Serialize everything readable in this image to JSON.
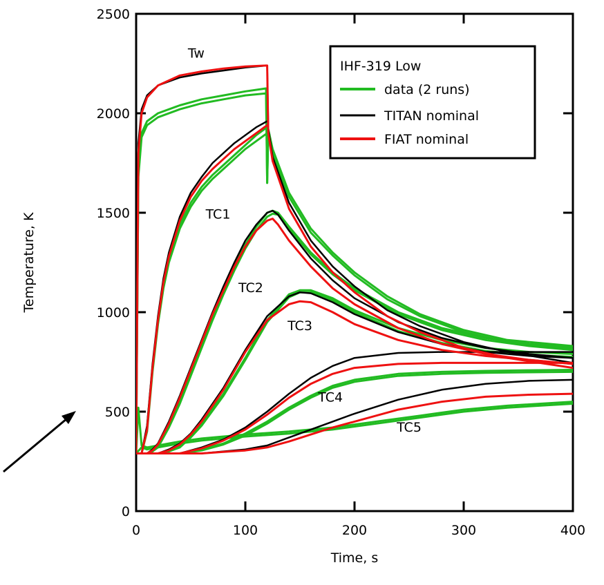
{
  "chart_data": {
    "type": "line",
    "xlabel": "Time, s",
    "ylabel": "Temperature, K",
    "xlim": [
      0,
      400
    ],
    "ylim": [
      0,
      2500
    ],
    "x_ticks": [
      0,
      100,
      200,
      300,
      400
    ],
    "y_ticks": [
      0,
      500,
      1000,
      1500,
      2000,
      2500
    ],
    "grid": false,
    "legend": {
      "placement": "top-right",
      "title": "IHF-319 Low",
      "entries": [
        {
          "label": "data (2 runs)",
          "color": "#22bb22"
        },
        {
          "label": "TITAN nominal",
          "color": "#000000"
        },
        {
          "label": "FIAT nominal",
          "color": "#ee1111"
        }
      ]
    },
    "curve_labels": [
      {
        "text": "Tw",
        "x": 55,
        "y": 2280
      },
      {
        "text": "TC1",
        "x": 75,
        "y": 1470
      },
      {
        "text": "TC2",
        "x": 105,
        "y": 1100
      },
      {
        "text": "TC3",
        "x": 150,
        "y": 910
      },
      {
        "text": "TC4",
        "x": 178,
        "y": 550
      },
      {
        "text": "TC5",
        "x": 250,
        "y": 400
      }
    ],
    "series": [
      {
        "name": "Tw data run 1",
        "kind": "data",
        "color": "#22bb22",
        "x": [
          0,
          2,
          5,
          10,
          20,
          40,
          60,
          80,
          100,
          119,
          120,
          121,
          125,
          140,
          160,
          180,
          200,
          230,
          260,
          300,
          340,
          400
        ],
        "y": [
          300,
          1700,
          1900,
          1960,
          2000,
          2040,
          2070,
          2090,
          2110,
          2125,
          1650,
          1920,
          1820,
          1600,
          1420,
          1300,
          1200,
          1080,
          990,
          910,
          860,
          830
        ]
      },
      {
        "name": "Tw data run 2",
        "kind": "data",
        "color": "#22bb22",
        "x": [
          0,
          2,
          5,
          10,
          20,
          40,
          60,
          80,
          100,
          119,
          120,
          121,
          125,
          140,
          160,
          180,
          200,
          230,
          260,
          300,
          340,
          400
        ],
        "y": [
          300,
          1680,
          1880,
          1940,
          1980,
          2020,
          2050,
          2070,
          2090,
          2100,
          1650,
          1900,
          1800,
          1580,
          1400,
          1285,
          1185,
          1065,
          980,
          900,
          850,
          815
        ]
      },
      {
        "name": "Tw TITAN",
        "kind": "titan",
        "color": "#000000",
        "x": [
          0,
          2,
          5,
          10,
          20,
          40,
          60,
          80,
          100,
          119,
          120,
          121,
          125,
          140,
          160,
          180,
          200,
          230,
          260,
          300,
          340,
          400
        ],
        "y": [
          300,
          1850,
          2020,
          2090,
          2140,
          2180,
          2200,
          2215,
          2230,
          2240,
          2240,
          1920,
          1780,
          1550,
          1360,
          1230,
          1130,
          1010,
          930,
          850,
          800,
          745
        ]
      },
      {
        "name": "Tw FIAT",
        "kind": "fiat",
        "color": "#ee1111",
        "x": [
          0,
          2,
          5,
          10,
          20,
          40,
          60,
          80,
          100,
          119,
          120,
          121,
          125,
          140,
          160,
          180,
          200,
          230,
          260,
          300,
          340,
          400
        ],
        "y": [
          300,
          1800,
          2000,
          2080,
          2140,
          2190,
          2210,
          2225,
          2235,
          2240,
          2240,
          1900,
          1760,
          1520,
          1330,
          1200,
          1100,
          980,
          900,
          820,
          770,
          720
        ]
      },
      {
        "name": "TC1 data run 1",
        "kind": "data",
        "color": "#22bb22",
        "x": [
          0,
          5,
          10,
          15,
          20,
          25,
          30,
          40,
          50,
          60,
          70,
          80,
          90,
          100,
          110,
          120
        ],
        "y": [
          290,
          290,
          420,
          720,
          960,
          1140,
          1270,
          1440,
          1550,
          1630,
          1690,
          1740,
          1790,
          1840,
          1890,
          1930
        ]
      },
      {
        "name": "TC1 data run 2",
        "kind": "data",
        "color": "#22bb22",
        "x": [
          0,
          5,
          10,
          15,
          20,
          25,
          30,
          40,
          50,
          60,
          70,
          80,
          90,
          100,
          110,
          120
        ],
        "y": [
          290,
          290,
          400,
          700,
          940,
          1120,
          1250,
          1420,
          1530,
          1610,
          1670,
          1720,
          1770,
          1820,
          1860,
          1900
        ]
      },
      {
        "name": "TC1 TITAN",
        "kind": "titan",
        "color": "#000000",
        "x": [
          0,
          5,
          10,
          15,
          20,
          25,
          30,
          40,
          50,
          60,
          70,
          80,
          90,
          100,
          110,
          120
        ],
        "y": [
          290,
          290,
          430,
          740,
          980,
          1170,
          1300,
          1480,
          1600,
          1680,
          1750,
          1800,
          1850,
          1890,
          1930,
          1960
        ]
      },
      {
        "name": "TC1 FIAT",
        "kind": "fiat",
        "color": "#ee1111",
        "x": [
          0,
          5,
          10,
          15,
          20,
          25,
          30,
          40,
          50,
          60,
          70,
          80,
          90,
          100,
          110,
          120
        ],
        "y": [
          290,
          290,
          410,
          720,
          960,
          1150,
          1280,
          1460,
          1580,
          1660,
          1720,
          1770,
          1820,
          1860,
          1900,
          1940
        ]
      },
      {
        "name": "TC2 data run 1",
        "kind": "data",
        "color": "#22bb22",
        "x": [
          0,
          10,
          15,
          20,
          30,
          40,
          50,
          60,
          70,
          80,
          90,
          100,
          110,
          120,
          125,
          130,
          140,
          160,
          180,
          200,
          240,
          280,
          320,
          360,
          400
        ],
        "y": [
          290,
          290,
          300,
          330,
          430,
          560,
          700,
          840,
          980,
          1110,
          1230,
          1340,
          1430,
          1500,
          1510,
          1500,
          1430,
          1300,
          1200,
          1120,
          1000,
          920,
          870,
          840,
          825
        ]
      },
      {
        "name": "TC2 data run 2",
        "kind": "data",
        "color": "#22bb22",
        "x": [
          0,
          10,
          15,
          20,
          30,
          40,
          50,
          60,
          70,
          80,
          90,
          100,
          110,
          120,
          125,
          130,
          140,
          160,
          180,
          200,
          240,
          280,
          320,
          360,
          400
        ],
        "y": [
          290,
          290,
          300,
          320,
          420,
          540,
          680,
          820,
          960,
          1090,
          1210,
          1320,
          1410,
          1480,
          1495,
          1490,
          1420,
          1290,
          1190,
          1110,
          990,
          910,
          860,
          830,
          810
        ]
      },
      {
        "name": "TC2 TITAN",
        "kind": "titan",
        "color": "#000000",
        "x": [
          0,
          10,
          15,
          20,
          30,
          40,
          50,
          60,
          70,
          80,
          90,
          100,
          110,
          120,
          125,
          130,
          140,
          160,
          180,
          200,
          240,
          280,
          320,
          360,
          400
        ],
        "y": [
          290,
          290,
          310,
          340,
          450,
          580,
          720,
          860,
          1000,
          1130,
          1250,
          1360,
          1440,
          1500,
          1510,
          1490,
          1410,
          1270,
          1160,
          1070,
          950,
          870,
          820,
          790,
          770
        ]
      },
      {
        "name": "TC2 FIAT",
        "kind": "fiat",
        "color": "#ee1111",
        "x": [
          0,
          10,
          15,
          20,
          30,
          40,
          50,
          60,
          70,
          80,
          90,
          100,
          110,
          120,
          125,
          130,
          140,
          160,
          180,
          200,
          240,
          280,
          320,
          360,
          400
        ],
        "y": [
          290,
          290,
          305,
          335,
          440,
          570,
          710,
          850,
          990,
          1110,
          1230,
          1330,
          1410,
          1460,
          1470,
          1440,
          1360,
          1230,
          1120,
          1040,
          920,
          840,
          790,
          760,
          740
        ]
      },
      {
        "name": "TC3 data run 1",
        "kind": "data",
        "color": "#22bb22",
        "x": [
          0,
          20,
          30,
          40,
          50,
          60,
          80,
          100,
          120,
          140,
          150,
          160,
          180,
          200,
          240,
          280,
          320,
          360,
          400
        ],
        "y": [
          290,
          290,
          300,
          330,
          380,
          440,
          590,
          770,
          960,
          1090,
          1110,
          1110,
          1070,
          1010,
          920,
          860,
          820,
          800,
          790
        ]
      },
      {
        "name": "TC3 data run 2",
        "kind": "data",
        "color": "#22bb22",
        "x": [
          0,
          20,
          30,
          40,
          50,
          60,
          80,
          100,
          120,
          140,
          150,
          160,
          180,
          200,
          240,
          280,
          320,
          360,
          400
        ],
        "y": [
          290,
          290,
          300,
          320,
          370,
          430,
          580,
          760,
          950,
          1075,
          1100,
          1100,
          1060,
          1000,
          905,
          845,
          805,
          785,
          775
        ]
      },
      {
        "name": "TC3 TITAN",
        "kind": "titan",
        "color": "#000000",
        "x": [
          0,
          20,
          30,
          40,
          50,
          60,
          80,
          100,
          120,
          140,
          150,
          160,
          180,
          200,
          240,
          280,
          320,
          360,
          400
        ],
        "y": [
          290,
          290,
          310,
          340,
          390,
          460,
          620,
          810,
          980,
          1080,
          1100,
          1095,
          1050,
          990,
          900,
          840,
          800,
          780,
          770
        ]
      },
      {
        "name": "TC3 FIAT",
        "kind": "fiat",
        "color": "#ee1111",
        "x": [
          0,
          20,
          30,
          40,
          50,
          60,
          80,
          100,
          120,
          140,
          150,
          160,
          180,
          200,
          240,
          280,
          320,
          360,
          400
        ],
        "y": [
          290,
          290,
          305,
          335,
          385,
          450,
          610,
          800,
          960,
          1040,
          1055,
          1050,
          1000,
          940,
          860,
          810,
          780,
          760,
          740
        ]
      },
      {
        "name": "TC4 data run 1",
        "kind": "data",
        "color": "#22bb22",
        "x": [
          0,
          40,
          60,
          80,
          100,
          120,
          140,
          160,
          180,
          200,
          240,
          280,
          320,
          360,
          400
        ],
        "y": [
          290,
          290,
          310,
          340,
          390,
          450,
          520,
          580,
          630,
          660,
          690,
          700,
          705,
          708,
          710
        ]
      },
      {
        "name": "TC4 data run 2",
        "kind": "data",
        "color": "#22bb22",
        "x": [
          0,
          40,
          60,
          80,
          100,
          120,
          140,
          160,
          180,
          200,
          240,
          280,
          320,
          360,
          400
        ],
        "y": [
          290,
          290,
          305,
          335,
          380,
          440,
          510,
          570,
          620,
          650,
          680,
          690,
          695,
          698,
          700
        ]
      },
      {
        "name": "TC4 TITAN",
        "kind": "titan",
        "color": "#000000",
        "x": [
          0,
          40,
          60,
          80,
          100,
          120,
          140,
          160,
          180,
          200,
          240,
          280,
          320,
          360,
          400
        ],
        "y": [
          290,
          290,
          320,
          360,
          420,
          500,
          590,
          670,
          730,
          770,
          795,
          800,
          800,
          800,
          800
        ]
      },
      {
        "name": "TC4 FIAT",
        "kind": "fiat",
        "color": "#ee1111",
        "x": [
          0,
          40,
          60,
          80,
          100,
          120,
          140,
          160,
          180,
          200,
          240,
          280,
          320,
          360,
          400
        ],
        "y": [
          290,
          290,
          315,
          355,
          410,
          485,
          570,
          640,
          690,
          720,
          740,
          745,
          745,
          745,
          745
        ]
      },
      {
        "name": "TC5 data run 1",
        "kind": "data",
        "color": "#22bb22",
        "x": [
          0,
          2,
          5,
          10,
          20,
          40,
          60,
          80,
          100,
          140,
          180,
          220,
          260,
          300,
          340,
          400
        ],
        "y": [
          290,
          520,
          330,
          320,
          330,
          350,
          365,
          375,
          385,
          400,
          420,
          450,
          480,
          510,
          530,
          550
        ]
      },
      {
        "name": "TC5 data run 2",
        "kind": "data",
        "color": "#22bb22",
        "x": [
          0,
          5,
          10,
          20,
          40,
          60,
          80,
          100,
          140,
          180,
          220,
          260,
          300,
          340,
          400
        ],
        "y": [
          290,
          320,
          310,
          320,
          340,
          355,
          365,
          375,
          390,
          410,
          440,
          470,
          500,
          520,
          540
        ]
      },
      {
        "name": "TC5 TITAN",
        "kind": "titan",
        "color": "#000000",
        "x": [
          0,
          60,
          80,
          100,
          120,
          140,
          160,
          180,
          200,
          240,
          280,
          320,
          360,
          400
        ],
        "y": [
          290,
          290,
          300,
          310,
          330,
          370,
          410,
          450,
          490,
          560,
          610,
          640,
          655,
          660
        ]
      },
      {
        "name": "TC5 FIAT",
        "kind": "fiat",
        "color": "#ee1111",
        "x": [
          0,
          60,
          80,
          100,
          120,
          140,
          160,
          180,
          200,
          240,
          280,
          320,
          360,
          400
        ],
        "y": [
          290,
          290,
          298,
          305,
          320,
          350,
          385,
          420,
          450,
          510,
          550,
          575,
          585,
          590
        ]
      }
    ]
  }
}
